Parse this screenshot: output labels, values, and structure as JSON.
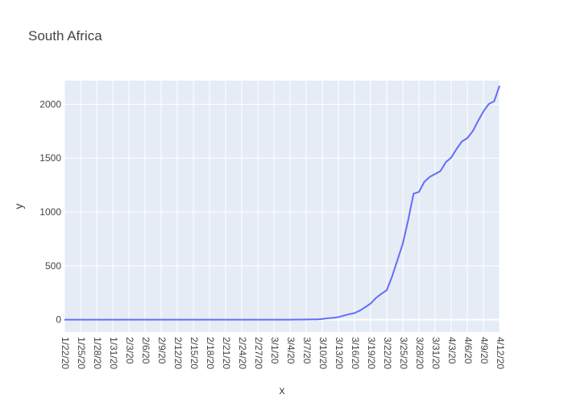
{
  "chart_data": {
    "type": "line",
    "title": "South Africa",
    "xlabel": "x",
    "ylabel": "y",
    "x_start": "1/22/20",
    "x_end": "4/12/20",
    "xlim": [
      "1/22/20",
      "4/12/20"
    ],
    "ylim": [
      -115,
      2220
    ],
    "yticks": [
      0,
      500,
      1000,
      1500,
      2000
    ],
    "xtick_labels": [
      "1/22/20",
      "1/25/20",
      "1/28/20",
      "1/31/20",
      "2/3/20",
      "2/6/20",
      "2/9/20",
      "2/12/20",
      "2/15/20",
      "2/18/20",
      "2/21/20",
      "2/24/20",
      "2/27/20",
      "3/1/20",
      "3/4/20",
      "3/7/20",
      "3/10/20",
      "3/13/20",
      "3/16/20",
      "3/19/20",
      "3/22/20",
      "3/25/20",
      "3/28/20",
      "3/31/20",
      "4/3/20",
      "4/6/20",
      "4/9/20",
      "4/12/20"
    ],
    "grid": true,
    "legend": false,
    "colors": {
      "line": "#636efa",
      "plot_bg": "#e5ecf6",
      "grid": "#ffffff"
    },
    "series": [
      {
        "x": [
          "1/22/20",
          "1/23/20",
          "1/24/20",
          "1/25/20",
          "1/26/20",
          "1/27/20",
          "1/28/20",
          "1/29/20",
          "1/30/20",
          "1/31/20",
          "2/1/20",
          "2/2/20",
          "2/3/20",
          "2/4/20",
          "2/5/20",
          "2/6/20",
          "2/7/20",
          "2/8/20",
          "2/9/20",
          "2/10/20",
          "2/11/20",
          "2/12/20",
          "2/13/20",
          "2/14/20",
          "2/15/20",
          "2/16/20",
          "2/17/20",
          "2/18/20",
          "2/19/20",
          "2/20/20",
          "2/21/20",
          "2/22/20",
          "2/23/20",
          "2/24/20",
          "2/25/20",
          "2/26/20",
          "2/27/20",
          "2/28/20",
          "2/29/20",
          "3/1/20",
          "3/2/20",
          "3/3/20",
          "3/4/20",
          "3/5/20",
          "3/6/20",
          "3/7/20",
          "3/8/20",
          "3/9/20",
          "3/10/20",
          "3/11/20",
          "3/12/20",
          "3/13/20",
          "3/14/20",
          "3/15/20",
          "3/16/20",
          "3/17/20",
          "3/18/20",
          "3/19/20",
          "3/20/20",
          "3/21/20",
          "3/22/20",
          "3/23/20",
          "3/24/20",
          "3/25/20",
          "3/26/20",
          "3/27/20",
          "3/28/20",
          "3/29/20",
          "3/30/20",
          "3/31/20",
          "4/1/20",
          "4/2/20",
          "4/3/20",
          "4/4/20",
          "4/5/20",
          "4/6/20",
          "4/7/20",
          "4/8/20",
          "4/9/20",
          "4/10/20",
          "4/11/20",
          "4/12/20"
        ],
        "values": [
          0,
          0,
          0,
          0,
          0,
          0,
          0,
          0,
          0,
          0,
          0,
          0,
          0,
          0,
          0,
          0,
          0,
          0,
          0,
          0,
          0,
          0,
          0,
          0,
          0,
          0,
          0,
          0,
          0,
          0,
          0,
          0,
          0,
          0,
          0,
          0,
          0,
          0,
          0,
          0,
          0,
          0,
          0,
          1,
          1,
          2,
          3,
          3,
          7,
          13,
          17,
          24,
          38,
          51,
          62,
          85,
          116,
          150,
          202,
          240,
          274,
          402,
          554,
          709,
          927,
          1170,
          1187,
          1280,
          1326,
          1353,
          1380,
          1462,
          1505,
          1585,
          1655,
          1686,
          1749,
          1845,
          1934,
          2003,
          2028,
          2173
        ]
      }
    ]
  }
}
